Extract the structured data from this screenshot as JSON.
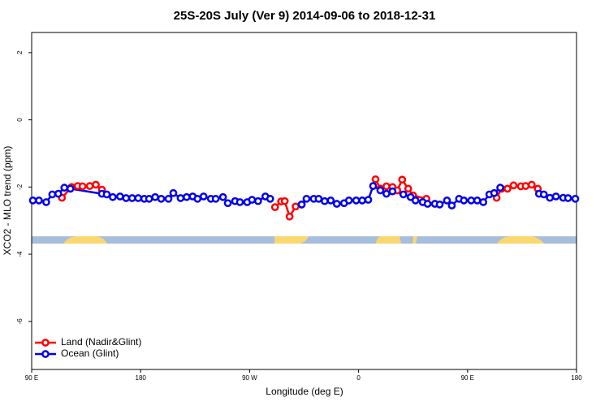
{
  "chart_data": {
    "type": "line",
    "title": "25S-20S July (Ver 9)   2014-09-06 to 2018-12-31",
    "x_label": "Longitude (deg E)",
    "y_label": "XCO2 - MLO trend (ppm)",
    "xlim": [
      90,
      540
    ],
    "xticks": [
      {
        "value": 90,
        "label": "90 E"
      },
      180,
      {
        "value": 270,
        "label": "90 W"
      },
      {
        "value": 360,
        "label": "0"
      },
      {
        "value": 450,
        "label": "90 E"
      },
      {
        "value": 540,
        "label": "180"
      }
    ],
    "ylim": [
      -7.43,
      2.6
    ],
    "yticks": [
      2,
      0,
      -2,
      -4,
      -6
    ],
    "legend": "bottom-left",
    "series": [
      {
        "name": "Land (Nadir&Glint)",
        "color": "#ff0000",
        "x": [
          115,
          123,
          128,
          132,
          138,
          143,
          148,
          null,
          291,
          296,
          299,
          303,
          308,
          313,
          null,
          374,
          378,
          383,
          388,
          392,
          396,
          401,
          405,
          416,
          null,
          474,
          478,
          483,
          488,
          494,
          498,
          503,
          508
        ],
        "values": [
          -2.32,
          -2.0,
          -1.97,
          -1.98,
          -1.97,
          -1.93,
          -2.08,
          null,
          -2.6,
          -2.43,
          -2.42,
          -2.88,
          -2.58,
          -2.52,
          null,
          -1.77,
          -2.05,
          -1.98,
          -2.0,
          -2.1,
          -1.78,
          -2.05,
          -2.25,
          -2.35,
          null,
          -2.32,
          -2.05,
          -2.05,
          -1.95,
          -1.98,
          -1.97,
          -1.93,
          -2.05
        ]
      },
      {
        "name": "Ocean (Glint)",
        "color": "#0000ee",
        "x": [
          91,
          96,
          102,
          107,
          112,
          117,
          122,
          148,
          152,
          157,
          163,
          168,
          173,
          178,
          183,
          187,
          192,
          197,
          203,
          207,
          213,
          218,
          223,
          227,
          232,
          238,
          242,
          248,
          252,
          258,
          262,
          268,
          272,
          277,
          283,
          287,
          null,
          313,
          317,
          323,
          327,
          332,
          337,
          342,
          348,
          352,
          358,
          363,
          368,
          372,
          378,
          383,
          388,
          397,
          403,
          407,
          413,
          417,
          423,
          427,
          433,
          437,
          443,
          447,
          453,
          458,
          463,
          468,
          472,
          477,
          null,
          509,
          513,
          518,
          523,
          529,
          533,
          539
        ],
        "values": [
          -2.4,
          -2.4,
          -2.45,
          -2.22,
          -2.2,
          -2.02,
          -2.05,
          -2.2,
          -2.22,
          -2.3,
          -2.28,
          -2.33,
          -2.33,
          -2.33,
          -2.35,
          -2.35,
          -2.3,
          -2.35,
          -2.35,
          -2.18,
          -2.33,
          -2.3,
          -2.28,
          -2.35,
          -2.28,
          -2.35,
          -2.35,
          -2.3,
          -2.48,
          -2.42,
          -2.45,
          -2.45,
          -2.38,
          -2.42,
          -2.28,
          -2.35,
          null,
          -2.52,
          -2.35,
          -2.35,
          -2.35,
          -2.42,
          -2.4,
          -2.5,
          -2.48,
          -2.4,
          -2.4,
          -2.4,
          -2.38,
          -1.97,
          -2.1,
          -2.2,
          -2.13,
          -2.22,
          -2.3,
          -2.4,
          -2.45,
          -2.5,
          -2.5,
          -2.52,
          -2.4,
          -2.55,
          -2.35,
          -2.4,
          -2.4,
          -2.4,
          -2.45,
          -2.22,
          -2.18,
          -2.02,
          null,
          -2.2,
          -2.22,
          -2.32,
          -2.28,
          -2.32,
          -2.33,
          -2.35
        ]
      }
    ]
  }
}
